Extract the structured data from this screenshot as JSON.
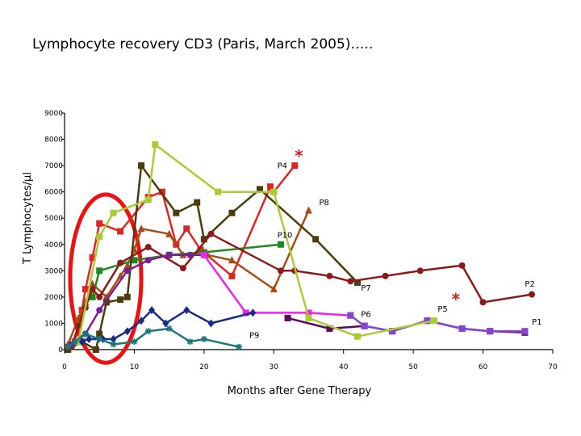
{
  "chart_data": {
    "type": "line",
    "title": "Lymphocyte recovery CD3 (Paris, March 2005)…..",
    "xlabel": "Months after Gene Therapy",
    "ylabel": "T Lymphocytes/µl",
    "xlim": [
      0,
      70
    ],
    "ylim": [
      0,
      9000
    ],
    "xticks": [
      0,
      10,
      20,
      30,
      40,
      50,
      60,
      70
    ],
    "yticks": [
      0,
      1000,
      2000,
      3000,
      4000,
      5000,
      6000,
      7000,
      8000,
      9000
    ],
    "grid": false,
    "legend": "none",
    "annotations": [
      {
        "text": "*",
        "x": 33,
        "y": 7150,
        "color": "#cc2020"
      },
      {
        "text": "*",
        "x": 55.5,
        "y": 1700,
        "color": "#cc2020"
      }
    ],
    "highlight": {
      "shape": "ellipse",
      "color": "#ee1111",
      "x_range": [
        0.8,
        11
      ],
      "y_range": [
        -500,
        5900
      ]
    },
    "series": [
      {
        "name": "P4",
        "color": "#e02424",
        "marker": "square",
        "label": {
          "x": 30.5,
          "y": 6900
        },
        "points": [
          [
            0.5,
            100
          ],
          [
            1.5,
            300
          ],
          [
            2,
            1000
          ],
          [
            2.5,
            1500
          ],
          [
            3,
            2300
          ],
          [
            4,
            3500
          ],
          [
            5,
            4800
          ],
          [
            8,
            4500
          ],
          [
            12,
            5800
          ],
          [
            14,
            6000
          ],
          [
            16,
            4000
          ],
          [
            17.5,
            4600
          ],
          [
            19.5,
            3800
          ],
          [
            24,
            2800
          ],
          [
            29.5,
            6200
          ],
          [
            30,
            6000
          ],
          [
            33,
            7000
          ]
        ]
      },
      {
        "name": "P8",
        "color": "#a84c14",
        "marker": "triangle",
        "label": {
          "x": 36.5,
          "y": 5500
        },
        "points": [
          [
            0.5,
            200
          ],
          [
            2,
            1200
          ],
          [
            3,
            1800
          ],
          [
            4,
            2500
          ],
          [
            6,
            2000
          ],
          [
            8,
            2800
          ],
          [
            9,
            3200
          ],
          [
            10,
            3800
          ],
          [
            11,
            4600
          ],
          [
            15,
            4400
          ],
          [
            17,
            3600
          ],
          [
            20.5,
            3600
          ],
          [
            24,
            3400
          ],
          [
            30,
            2300
          ],
          [
            35,
            5300
          ]
        ]
      },
      {
        "name": "P10",
        "color": "#1e8a1e",
        "marker": "square",
        "label": {
          "x": 30.5,
          "y": 4250
        },
        "points": [
          [
            4,
            2000
          ],
          [
            5,
            3000
          ],
          [
            10,
            3400
          ],
          [
            15,
            3600
          ],
          [
            20,
            3700
          ],
          [
            31,
            4000
          ]
        ]
      },
      {
        "name": "P7",
        "color": "#4a3c0c",
        "marker": "square",
        "label": {
          "x": 42.5,
          "y": 2250
        },
        "points": [
          [
            0.5,
            0
          ],
          [
            2.5,
            300
          ],
          [
            4.5,
            0
          ],
          [
            5,
            600
          ],
          [
            6,
            1800
          ],
          [
            8,
            1900
          ],
          [
            9,
            2000
          ],
          [
            11,
            7000
          ],
          [
            16,
            5200
          ],
          [
            19,
            5600
          ],
          [
            20,
            4200
          ],
          [
            24,
            5200
          ],
          [
            28,
            6100
          ],
          [
            36,
            4200
          ],
          [
            42,
            2550
          ]
        ]
      },
      {
        "name": "P2",
        "color": "#8b1a1a",
        "marker": "circle",
        "label": {
          "x": 66,
          "y": 2400
        },
        "points": [
          [
            1,
            100
          ],
          [
            2,
            900
          ],
          [
            3,
            1600
          ],
          [
            4,
            2300
          ],
          [
            5,
            2000
          ],
          [
            8,
            3300
          ],
          [
            12,
            3900
          ],
          [
            17,
            3100
          ],
          [
            21,
            4400
          ],
          [
            31,
            3000
          ],
          [
            33,
            3000
          ],
          [
            38,
            2800
          ],
          [
            41,
            2600
          ],
          [
            46,
            2800
          ],
          [
            51,
            3000
          ],
          [
            57,
            3200
          ],
          [
            60,
            1800
          ],
          [
            67,
            2100
          ]
        ]
      },
      {
        "name": "P5",
        "color": "#5c0a5c",
        "marker": "square",
        "label": {
          "x": 53.5,
          "y": 1450
        },
        "points": [
          [
            32,
            1200
          ],
          [
            38,
            800
          ],
          [
            43,
            900
          ],
          [
            47,
            700
          ],
          [
            52,
            1100
          ],
          [
            57,
            800
          ],
          [
            61,
            700
          ],
          [
            66,
            650
          ]
        ]
      },
      {
        "name": "P6",
        "color": "#7c1e9c",
        "marker": "circle",
        "label": {
          "x": 42.5,
          "y": 1250
        },
        "points": [
          [
            1,
            200
          ],
          [
            3,
            600
          ],
          [
            5,
            1500
          ],
          [
            9,
            3000
          ],
          [
            12,
            3400
          ],
          [
            15,
            3600
          ],
          [
            18,
            3600
          ],
          [
            20,
            3600
          ]
        ]
      },
      {
        "name": "P6",
        "color": "#ee22ee",
        "marker": "square",
        "points": [
          [
            20,
            3600
          ],
          [
            26,
            1400
          ],
          [
            35,
            1400
          ],
          [
            41,
            1300
          ]
        ]
      },
      {
        "name": "P1",
        "color": "#8844cc",
        "marker": "square",
        "label": {
          "x": 67,
          "y": 950
        },
        "points": [
          [
            41,
            1300
          ],
          [
            43,
            900
          ],
          [
            47,
            700
          ],
          [
            52,
            1100
          ],
          [
            57,
            800
          ],
          [
            61,
            700
          ],
          [
            66,
            700
          ]
        ]
      },
      {
        "name": "",
        "color": "#aacc33",
        "marker": "square",
        "points": [
          [
            2,
            300
          ],
          [
            5,
            4300
          ],
          [
            7,
            5200
          ],
          [
            12,
            5700
          ],
          [
            13,
            7800
          ],
          [
            22,
            6000
          ],
          [
            30,
            6000
          ],
          [
            35,
            1200
          ],
          [
            42,
            500
          ],
          [
            53,
            1100
          ]
        ]
      },
      {
        "name": "",
        "color": "#1a2a8a",
        "marker": "diamond",
        "points": [
          [
            2.5,
            300
          ],
          [
            3.5,
            400
          ],
          [
            5.5,
            400
          ],
          [
            7,
            400
          ],
          [
            9,
            700
          ],
          [
            11,
            1100
          ],
          [
            12.5,
            1500
          ],
          [
            14.5,
            1000
          ],
          [
            17.5,
            1500
          ],
          [
            21,
            1000
          ],
          [
            27,
            1400
          ]
        ]
      },
      {
        "name": "P9",
        "color": "#1a7878",
        "marker": "star",
        "label": {
          "x": 26.5,
          "y": 450
        },
        "points": [
          [
            0.5,
            100
          ],
          [
            1.5,
            300
          ],
          [
            3,
            600
          ],
          [
            5,
            400
          ],
          [
            7,
            200
          ],
          [
            10,
            300
          ],
          [
            12,
            700
          ],
          [
            15,
            800
          ],
          [
            18,
            300
          ],
          [
            20,
            400
          ],
          [
            25,
            100
          ]
        ]
      }
    ]
  }
}
